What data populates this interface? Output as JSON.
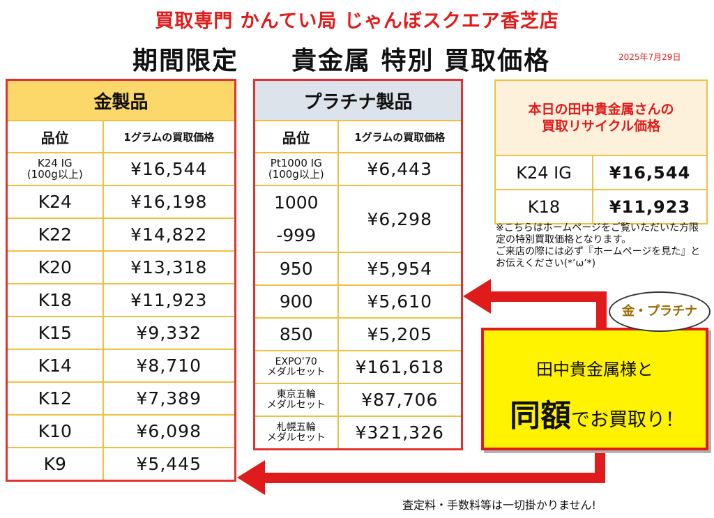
{
  "header": {
    "shop_title": "買取専門 かんてい局 じゃんぼスクエア香芝店",
    "main_title": "期間限定　　貴金属 特別 買取価格",
    "date": "2025年7月29日"
  },
  "gold": {
    "title": "金製品",
    "col_grade": "品位",
    "col_price": "1グラムの買取価格",
    "rows": [
      {
        "grade": "K24 IG\n(100g以上)",
        "price": "¥16,544"
      },
      {
        "grade": "K24",
        "price": "¥16,198"
      },
      {
        "grade": "K22",
        "price": "¥14,822"
      },
      {
        "grade": "K20",
        "price": "¥13,318"
      },
      {
        "grade": "K18",
        "price": "¥11,923"
      },
      {
        "grade": "K15",
        "price": "¥9,332"
      },
      {
        "grade": "K14",
        "price": "¥8,710"
      },
      {
        "grade": "K12",
        "price": "¥7,389"
      },
      {
        "grade": "K10",
        "price": "¥6,098"
      },
      {
        "grade": "K9",
        "price": "¥5,445"
      }
    ]
  },
  "platinum": {
    "title": "プラチナ製品",
    "col_grade": "品位",
    "col_price": "1グラムの買取価格",
    "rows": [
      {
        "grade": "Pt1000 IG\n(100g以上)",
        "price": "¥6,443"
      },
      {
        "grade_line1": "1000",
        "grade_line2": "-999",
        "price": "¥6,298"
      },
      {
        "grade": "950",
        "price": "¥5,954"
      },
      {
        "grade": "900",
        "price": "¥5,610"
      },
      {
        "grade": "850",
        "price": "¥5,205"
      },
      {
        "grade": "EXPO’70\nメダルセット",
        "price": "¥161,618"
      },
      {
        "grade": "東京五輪\nメダルセット",
        "price": "¥87,706"
      },
      {
        "grade": "札幌五輪\nメダルセット",
        "price": "¥321,326"
      }
    ]
  },
  "tanaka": {
    "title": "本日の田中貴金属さんの\n買取リサイクル価格",
    "rows": [
      {
        "grade": "K24 IG",
        "price": "¥16,544"
      },
      {
        "grade": "K18",
        "price": "¥11,923"
      }
    ]
  },
  "note": "※こちらはホームページをご覧いただいた方限定の特別買取価格となります。\nご来店の際には必ず『ホームページを見た』とお伝えください(*’ω’*)",
  "promo": {
    "bubble": "金・プラチナ",
    "line1": "田中貴金属様と",
    "big": "同額",
    "rest": "でお買取り！"
  },
  "footer": "査定料・手数料等は一切掛かりません!",
  "colors": {
    "accent_red": "#e01b1b",
    "gold_header": "#fcd76a",
    "platinum_header": "#dde3ea",
    "promo_yellow": "#fff300"
  }
}
